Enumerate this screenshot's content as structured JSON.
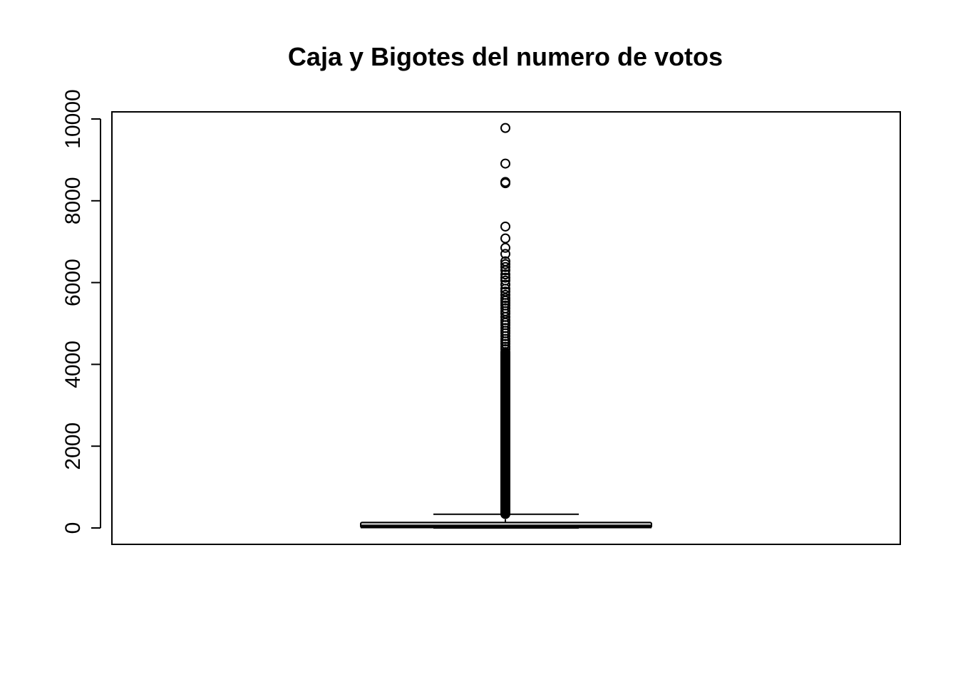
{
  "chart_data": {
    "type": "boxplot",
    "title": "Caja y Bigotes del numero de votos",
    "xlabel": "",
    "ylabel": "",
    "ylim": [
      -380,
      10200
    ],
    "y_ticks": [
      0,
      2000,
      4000,
      6000,
      8000,
      10000
    ],
    "y_tick_labels": [
      "0",
      "2000",
      "4000",
      "6000",
      "8000",
      "10000"
    ],
    "grid": false,
    "box": {
      "min": 1,
      "q1": 8,
      "median": 34,
      "q3": 134,
      "whisker_high": 335
    },
    "outliers_individual": [
      9780,
      8910,
      8460,
      8430,
      7370,
      7080,
      6850,
      6700,
      6520,
      6450,
      6380,
      6300,
      6200,
      6120,
      6050,
      5950,
      5850,
      5780,
      5700,
      5620,
      5560,
      5500,
      5440,
      5370,
      5300,
      5240,
      5160,
      5080,
      5020,
      4960,
      4890,
      4820,
      4760,
      4690,
      4620,
      4560,
      4500,
      4430,
      4370,
      3950,
      3800
    ],
    "outliers_dense_range": [
      340,
      4300
    ],
    "colors": {
      "box_fill": "#d3d3d3",
      "stroke": "#000000",
      "background": "#ffffff"
    }
  }
}
